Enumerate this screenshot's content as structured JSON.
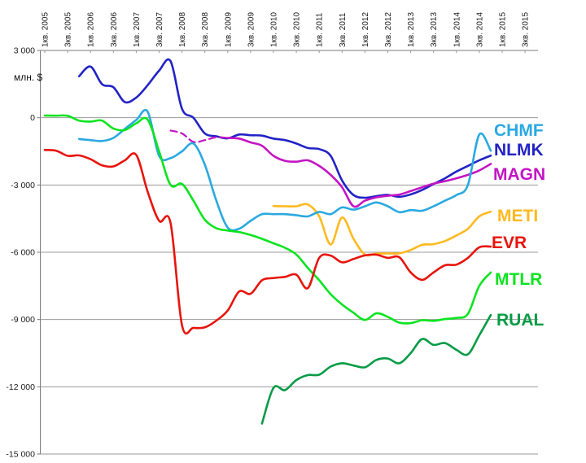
{
  "chart_data": {
    "type": "line",
    "title": "",
    "unit_label": "млн. $",
    "y_axis": {
      "min": -15000,
      "max": 3000,
      "grid": true,
      "ticks": [
        {
          "value": 3000,
          "label": "3 000"
        },
        {
          "value": 0,
          "label": "0"
        },
        {
          "value": -3000,
          "label": "-3 000"
        },
        {
          "value": -6000,
          "label": "-6 000"
        },
        {
          "value": -9000,
          "label": "-9 000"
        },
        {
          "value": -12000,
          "label": "-12 000"
        },
        {
          "value": -15000,
          "label": "-15 000"
        }
      ]
    },
    "x_axis": {
      "total_quarters": 43,
      "first_quarter": "1кв. 2005",
      "last_quarter": "3кв. 2015",
      "label_every_n_quarters": 2,
      "tick_labels": [
        "1кв. 2005",
        "3кв. 2005",
        "1кв. 2006",
        "3кв. 2006",
        "1кв. 2007",
        "3кв. 2007",
        "1кв. 2008",
        "3кв. 2008",
        "1кв. 2009",
        "3кв. 2009",
        "1кв. 2010",
        "3кв. 2010",
        "1кв. 2011",
        "3кв. 2011",
        "1кв. 2012",
        "3кв. 2012",
        "1кв. 2013",
        "3кв. 2013",
        "1кв. 2014",
        "3кв. 2014",
        "1кв. 2015",
        "3кв. 2015"
      ]
    },
    "legend_position": "right",
    "series": [
      {
        "name": "CHMF",
        "color": "#29A9E0",
        "start_quarter_index": 3,
        "dashed_points_at_start": 0,
        "values": [
          -950,
          -1000,
          -1040,
          -900,
          -500,
          -100,
          270,
          -1700,
          -1800,
          -1500,
          -1150,
          -2100,
          -3700,
          -4900,
          -4950,
          -4600,
          -4300,
          -4300,
          -4300,
          -4350,
          -4400,
          -4200,
          -4300,
          -4000,
          -4100,
          -3950,
          -3780,
          -3950,
          -4210,
          -4120,
          -4150,
          -3950,
          -3700,
          -3450,
          -3000,
          -750,
          -1470
        ]
      },
      {
        "name": "NLMK",
        "color": "#2222C6",
        "start_quarter_index": 3,
        "dashed_points_at_start": 0,
        "values": [
          1850,
          2280,
          1500,
          1360,
          700,
          900,
          1450,
          2100,
          2520,
          400,
          0,
          -700,
          -830,
          -920,
          -750,
          -780,
          -800,
          -930,
          -1000,
          -1150,
          -1350,
          -1400,
          -1700,
          -2800,
          -3450,
          -3570,
          -3500,
          -3440,
          -3530,
          -3420,
          -3220,
          -2960,
          -2700,
          -2400,
          -2150,
          -1900,
          -1690
        ]
      },
      {
        "name": "MAGN",
        "color": "#C414C4",
        "start_quarter_index": 11,
        "dashed_points_at_start": 6,
        "values": [
          -570,
          -700,
          -1080,
          -1000,
          -870,
          -900,
          -930,
          -1100,
          -1250,
          -1700,
          -1920,
          -1960,
          -1900,
          -2150,
          -2550,
          -3100,
          -3950,
          -3700,
          -3550,
          -3480,
          -3430,
          -3270,
          -3100,
          -2940,
          -2830,
          -2700,
          -2550,
          -2350,
          -2060
        ]
      },
      {
        "name": "METI",
        "color": "#FFB91E",
        "start_quarter_index": 20,
        "dashed_points_at_start": 0,
        "values": [
          -3940,
          -3950,
          -3950,
          -3870,
          -4400,
          -5650,
          -4450,
          -5400,
          -6100,
          -6060,
          -6050,
          -6050,
          -5900,
          -5670,
          -5640,
          -5500,
          -5250,
          -4950,
          -4400,
          -4190
        ]
      },
      {
        "name": "EVR",
        "color": "#E8140C",
        "start_quarter_index": 0,
        "dashed_points_at_start": 0,
        "values": [
          -1440,
          -1470,
          -1700,
          -1680,
          -1850,
          -2120,
          -2170,
          -1900,
          -1660,
          -3300,
          -4600,
          -4700,
          -9250,
          -9370,
          -9350,
          -9050,
          -8600,
          -7750,
          -7850,
          -7250,
          -7150,
          -7100,
          -7000,
          -7600,
          -6250,
          -6150,
          -6450,
          -6300,
          -6140,
          -6110,
          -6250,
          -6220,
          -6900,
          -7230,
          -6900,
          -6580,
          -6550,
          -6250,
          -5780,
          -5750
        ]
      },
      {
        "name": "MTLR",
        "color": "#0BE41F",
        "start_quarter_index": 0,
        "dashed_points_at_start": 0,
        "values": [
          95,
          90,
          85,
          -130,
          -170,
          -130,
          -480,
          -550,
          -250,
          -80,
          -1500,
          -3000,
          -2950,
          -3700,
          -4550,
          -4930,
          -5030,
          -5100,
          -5230,
          -5400,
          -5600,
          -5800,
          -6100,
          -6700,
          -7250,
          -7870,
          -8330,
          -8700,
          -9020,
          -8720,
          -8880,
          -9140,
          -9160,
          -9030,
          -9060,
          -8980,
          -8930,
          -8750,
          -7500,
          -6900
        ]
      },
      {
        "name": "RUAL",
        "color": "#079B46",
        "start_quarter_index": 19,
        "dashed_points_at_start": 0,
        "values": [
          -13640,
          -12050,
          -12150,
          -11700,
          -11480,
          -11460,
          -11100,
          -10950,
          -11050,
          -11130,
          -10800,
          -10740,
          -10950,
          -10500,
          -9870,
          -10130,
          -10050,
          -10350,
          -10550,
          -9700,
          -8800
        ]
      }
    ],
    "grid_color": "#999999",
    "axis_color": "#7a7a7a",
    "label_color": "#1a1a1a"
  }
}
